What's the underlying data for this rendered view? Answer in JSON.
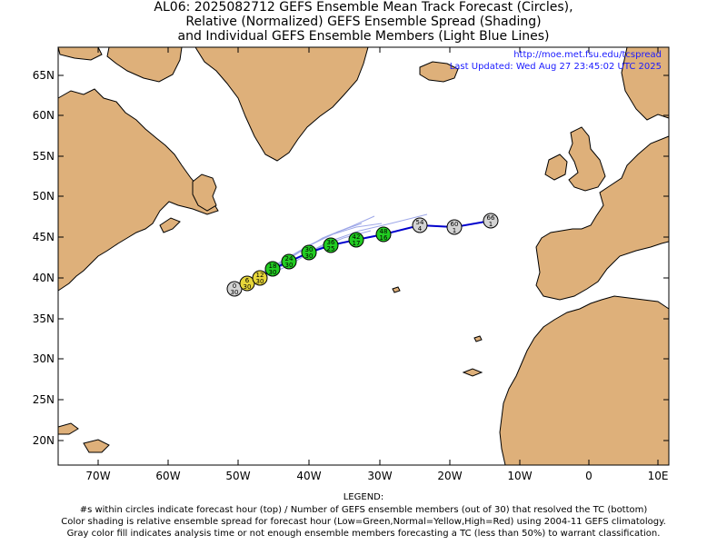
{
  "title": {
    "line1": "AL06: 2025082712 GEFS Ensemble Mean Track Forecast (Circles),",
    "line2": "Relative (Normalized) GEFS Ensemble Spread (Shading)",
    "line3": "and Individual GEFS Ensemble Members (Light Blue Lines)"
  },
  "source": {
    "url": "http://moe.met.fsu.edu/tcspread",
    "updated": "Last Updated: Wed Aug 27 23:45:02 UTC 2025"
  },
  "axes": {
    "lat_labels": [
      "65N",
      "60N",
      "55N",
      "50N",
      "45N",
      "40N",
      "35N",
      "30N",
      "25N",
      "20N"
    ],
    "lon_labels": [
      "70W",
      "60W",
      "50W",
      "40W",
      "30W",
      "20W",
      "10W",
      "0",
      "10E"
    ]
  },
  "colors": {
    "land": "#DEB07A",
    "ocean": "#FFFFFF",
    "track": "#0000CC",
    "members": "#9FA8E8",
    "low_spread": "#22CC22",
    "normal_spread": "#E6D63A",
    "gray": "#D3D3D3"
  },
  "forecast_points": [
    {
      "hour": "0",
      "members": "30",
      "class": "gray"
    },
    {
      "hour": "6",
      "members": "30",
      "class": "yellow"
    },
    {
      "hour": "12",
      "members": "30",
      "class": "yellow"
    },
    {
      "hour": "18",
      "members": "30",
      "class": "green"
    },
    {
      "hour": "24",
      "members": "30",
      "class": "green"
    },
    {
      "hour": "30",
      "members": "30",
      "class": "green"
    },
    {
      "hour": "36",
      "members": "25",
      "class": "green"
    },
    {
      "hour": "42",
      "members": "17",
      "class": "green"
    },
    {
      "hour": "48",
      "members": "16",
      "class": "green"
    },
    {
      "hour": "54",
      "members": "4",
      "class": "gray"
    },
    {
      "hour": "60",
      "members": "1",
      "class": "gray"
    },
    {
      "hour": "66",
      "members": "1",
      "class": "gray"
    }
  ],
  "legend": {
    "heading": "LEGEND:",
    "line1": "#s within circles indicate forecast hour (top) / Number of GEFS ensemble members (out of 30) that resolved the TC (bottom)",
    "line2": "Color shading is relative ensemble spread for forecast hour (Low=Green,Normal=Yellow,High=Red) using 2004-11 GEFS climatology.",
    "line3": "Gray color fill indicates analysis time or not enough ensemble members forecasting a TC (less than 50%) to warrant classification."
  }
}
